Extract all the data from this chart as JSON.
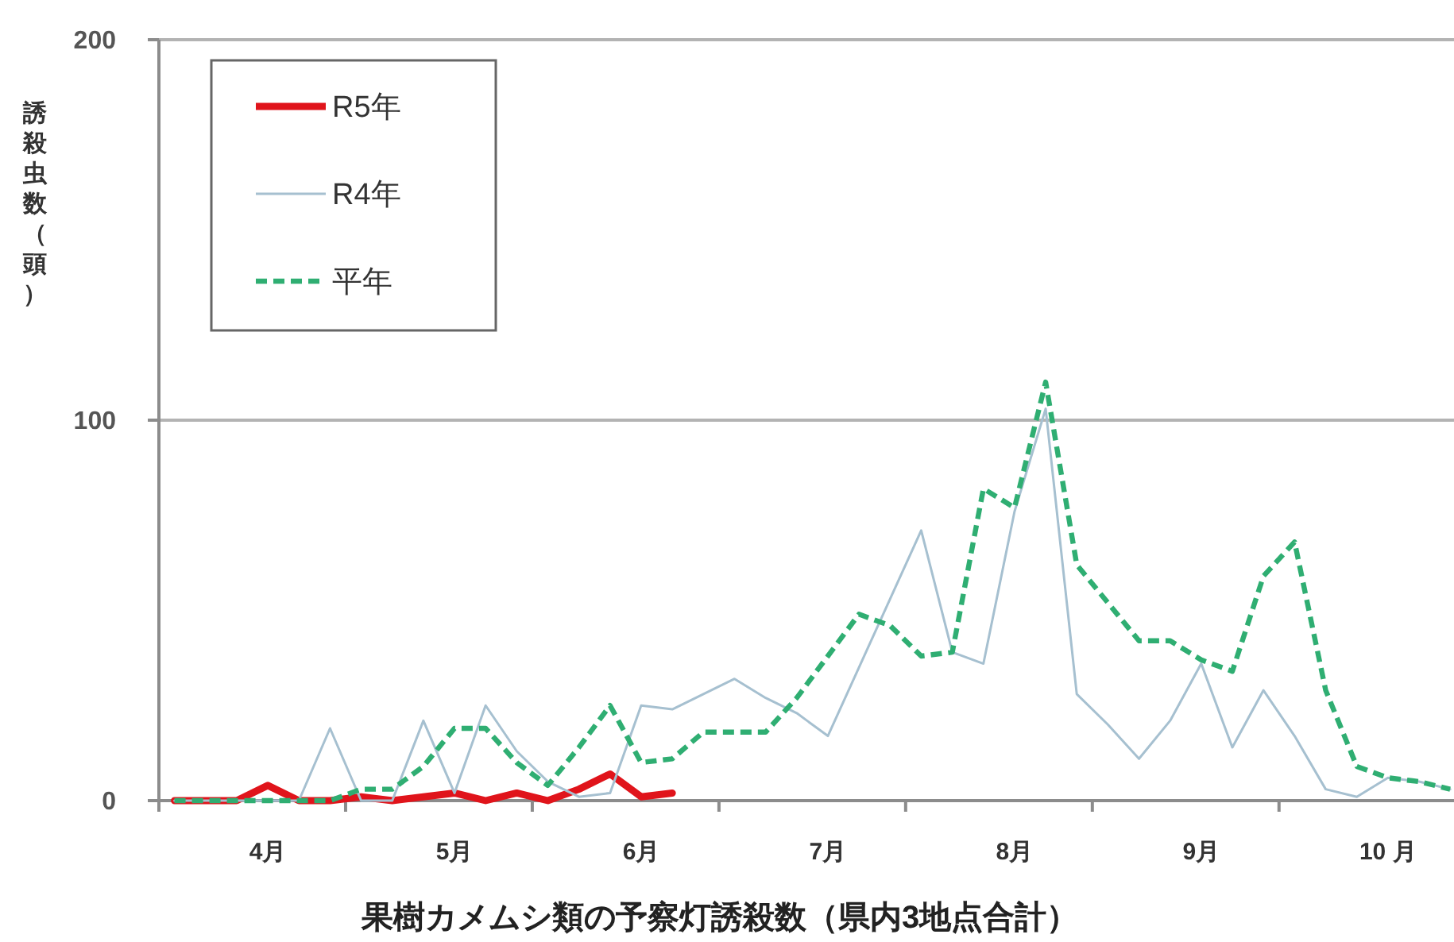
{
  "chart_data": {
    "type": "line",
    "title": "果樹カメムシ類の予察灯誘殺数（県内3地点合計）",
    "ylabel": "誘殺虫数（頭）",
    "categories": [
      null,
      null,
      null,
      "4月",
      null,
      null,
      null,
      null,
      null,
      "5月",
      null,
      null,
      null,
      null,
      null,
      "6月",
      null,
      null,
      null,
      null,
      null,
      "7月",
      null,
      null,
      null,
      null,
      null,
      "8月",
      null,
      null,
      null,
      null,
      null,
      "9月",
      null,
      null,
      null,
      null,
      null,
      "10 月",
      null,
      null
    ],
    "ylim": [
      0,
      200
    ],
    "yticks": [
      0,
      100,
      200
    ],
    "grid": "y",
    "legend": "top left",
    "series": [
      {
        "name": "R5年",
        "color": "#e0141b",
        "values": [
          0,
          0,
          0,
          4,
          0,
          0,
          1,
          0,
          1,
          2,
          0,
          2,
          0,
          3,
          7,
          1,
          2,
          null,
          null,
          null,
          null,
          null,
          null,
          null,
          null,
          null,
          null,
          null,
          null,
          null,
          null,
          null,
          null,
          null,
          null,
          null,
          null,
          null,
          null,
          null,
          null,
          null
        ]
      },
      {
        "name": "R4年",
        "color": "#a6c0d0",
        "values": [
          0,
          0,
          0,
          0,
          0,
          19,
          0,
          0,
          21,
          2,
          25,
          13,
          5,
          1,
          2,
          25,
          24,
          28,
          32,
          27,
          23,
          17,
          35,
          53,
          71,
          39,
          36,
          76,
          103,
          28,
          20,
          11,
          21,
          36,
          14,
          29,
          17,
          3,
          1,
          6,
          5,
          3
        ]
      },
      {
        "name": "平年",
        "color": "#2fae72",
        "line_style": "dashed",
        "values": [
          0,
          0,
          0,
          0,
          0,
          0,
          3,
          3,
          9,
          19,
          19,
          10,
          4,
          14,
          25,
          10,
          11,
          18,
          18,
          18,
          27,
          38,
          49,
          46,
          38,
          39,
          82,
          77,
          110,
          62,
          52,
          42,
          42,
          37,
          34,
          59,
          68,
          29,
          9,
          6,
          5,
          3
        ]
      }
    ]
  }
}
